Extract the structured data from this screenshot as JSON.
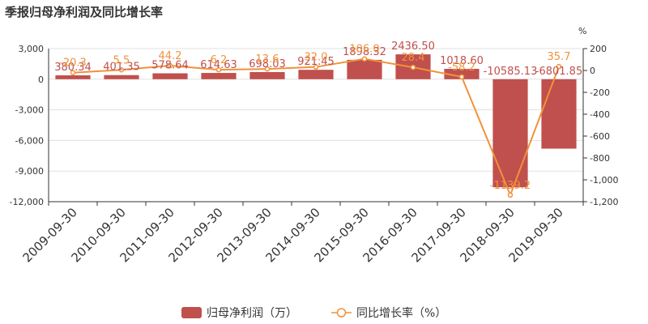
{
  "chart_data": {
    "type": "bar",
    "title": "季报归母净利润及同比增长率",
    "categories": [
      "2009-09-30",
      "2010-09-30",
      "2011-09-30",
      "2012-09-30",
      "2013-09-30",
      "2014-09-30",
      "2015-09-30",
      "2016-09-30",
      "2017-09-30",
      "2018-09-30",
      "2019-09-30"
    ],
    "series": [
      {
        "name": "归母净利润（万）",
        "type": "bar",
        "axis": "left",
        "values": [
          380.34,
          401.35,
          578.64,
          614.63,
          698.03,
          921.45,
          1898.32,
          2436.5,
          1018.6,
          -10585.13,
          -6801.85
        ],
        "labels": [
          "380.34",
          "401.35",
          "578.64",
          "614.63",
          "698.03",
          "921.45",
          "1898.32",
          "2436.50",
          "1018.60",
          "-10585.13",
          "-6801.85"
        ]
      },
      {
        "name": "同比增长率（%）",
        "type": "line",
        "axis": "right",
        "values": [
          -20.3,
          5.5,
          44.2,
          6.2,
          13.6,
          32.0,
          106.0,
          28.4,
          -58.2,
          -1139.2,
          35.7
        ],
        "labels": [
          "-20.3",
          "5.5",
          "44.2",
          "6.2",
          "13.6",
          "32.0",
          "106.0",
          "28.4",
          "-58.2",
          "-1139.2",
          "35.7"
        ]
      }
    ],
    "left_axis": {
      "ylim": [
        -12000,
        3000
      ],
      "ticks": [
        3000,
        0,
        -3000,
        -6000,
        -9000,
        -12000
      ],
      "tick_labels": [
        "3,000",
        "0",
        "-3,000",
        "-6,000",
        "-9,000",
        "-12,000"
      ]
    },
    "right_axis": {
      "unit": "%",
      "ylim": [
        -1200,
        200
      ],
      "ticks": [
        200,
        0,
        -200,
        -400,
        -600,
        -800,
        -1000,
        -1200
      ],
      "tick_labels": [
        "200",
        "0",
        "-200",
        "-400",
        "-600",
        "-800",
        "-1,000",
        "-1,200"
      ]
    },
    "grid": true,
    "legend_position": "bottom-center"
  },
  "colors": {
    "bar": "#c0504d",
    "bar_label": "#c0504d",
    "line": "#f0923a",
    "line_label": "#f0923a",
    "grid": "#e0e0e0",
    "axis": "#333333"
  }
}
